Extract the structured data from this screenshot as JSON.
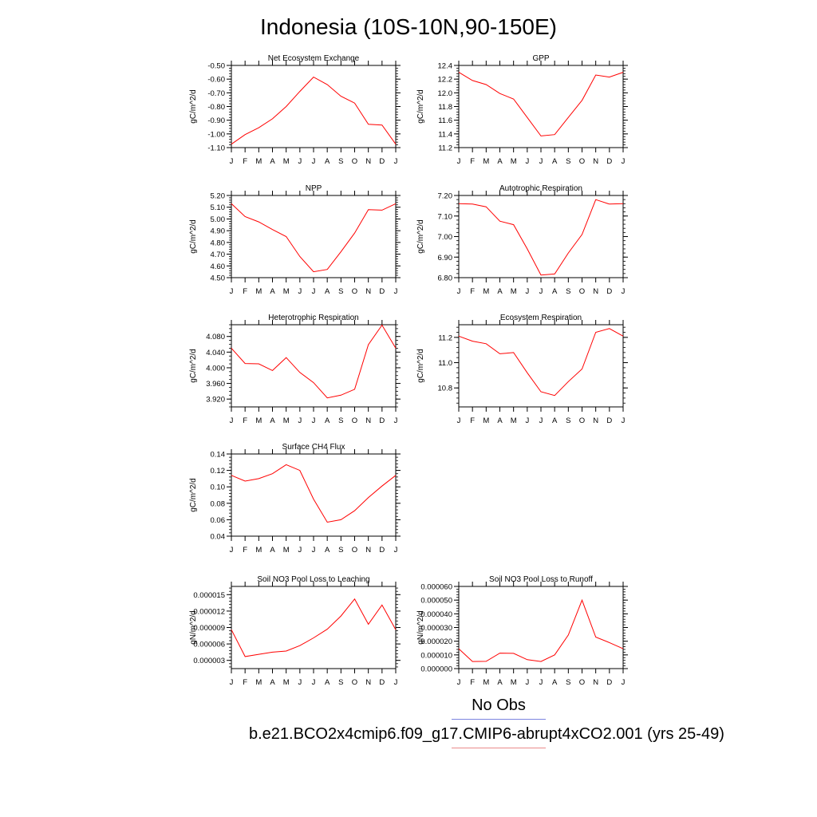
{
  "title": "Indonesia (10S-10N,90-150E)",
  "legend": {
    "obs_label": "No Obs",
    "obs_color": "#7b84e0",
    "case_label": "b.e21.BCO2x4cmip6.f09_g17.CMIP6-abrupt4xCO2.001 (yrs 25-49)",
    "case_color": "#e98a8a"
  },
  "line_color": "#ff0000",
  "chart_data": [
    {
      "type": "line",
      "title": "Net Ecosystem Exchange",
      "ylabel": "gC/m^2/d",
      "categories": [
        "J",
        "F",
        "M",
        "A",
        "M",
        "J",
        "J",
        "A",
        "S",
        "O",
        "N",
        "D",
        "J"
      ],
      "ylim": [
        -1.1,
        -0.5
      ],
      "yticks": [
        "-1.10",
        "-1.00",
        "-0.90",
        "-0.80",
        "-0.70",
        "-0.60",
        "-0.50"
      ],
      "yticks_values": [
        -1.1,
        -1.0,
        -0.9,
        -0.8,
        -0.7,
        -0.6,
        -0.5
      ],
      "minor_step": 0.02,
      "grid": false,
      "series": [
        {
          "values": [
            -1.075,
            -1.005,
            -0.955,
            -0.89,
            -0.8,
            -0.69,
            -0.585,
            -0.64,
            -0.725,
            -0.775,
            -0.93,
            -0.935,
            -1.075
          ]
        }
      ]
    },
    {
      "type": "line",
      "title": "GPP",
      "ylabel": "gC/m^2/d",
      "categories": [
        "J",
        "F",
        "M",
        "A",
        "M",
        "J",
        "J",
        "A",
        "S",
        "O",
        "N",
        "D",
        "J"
      ],
      "ylim": [
        11.2,
        12.4
      ],
      "yticks": [
        "11.2",
        "11.4",
        "11.6",
        "11.8",
        "12.0",
        "12.2",
        "12.4"
      ],
      "yticks_values": [
        11.2,
        11.4,
        11.6,
        11.8,
        12.0,
        12.2,
        12.4
      ],
      "minor_step": 0.04,
      "grid": false,
      "series": [
        {
          "values": [
            12.3,
            12.18,
            12.12,
            11.99,
            11.91,
            11.64,
            11.37,
            11.39,
            11.64,
            11.89,
            12.26,
            12.23,
            12.3
          ]
        }
      ]
    },
    {
      "type": "line",
      "title": "NPP",
      "ylabel": "gC/m^2/d",
      "categories": [
        "J",
        "F",
        "M",
        "A",
        "M",
        "J",
        "J",
        "A",
        "S",
        "O",
        "N",
        "D",
        "J"
      ],
      "ylim": [
        4.5,
        5.2
      ],
      "yticks": [
        "4.50",
        "4.60",
        "4.70",
        "4.80",
        "4.90",
        "5.00",
        "5.10",
        "5.20"
      ],
      "yticks_values": [
        4.5,
        4.6,
        4.7,
        4.8,
        4.9,
        5.0,
        5.1,
        5.2
      ],
      "minor_step": 0.02,
      "grid": false,
      "series": [
        {
          "values": [
            5.13,
            5.02,
            4.975,
            4.91,
            4.85,
            4.68,
            4.55,
            4.57,
            4.72,
            4.88,
            5.08,
            5.075,
            5.13
          ]
        }
      ]
    },
    {
      "type": "line",
      "title": "Autotrophic Respiration",
      "ylabel": "gC/m^2/d",
      "categories": [
        "J",
        "F",
        "M",
        "A",
        "M",
        "J",
        "J",
        "A",
        "S",
        "O",
        "N",
        "D",
        "J"
      ],
      "ylim": [
        6.8,
        7.2
      ],
      "yticks": [
        "6.80",
        "6.90",
        "7.00",
        "7.10",
        "7.20"
      ],
      "yticks_values": [
        6.8,
        6.9,
        7.0,
        7.1,
        7.2
      ],
      "minor_step": 0.02,
      "grid": false,
      "series": [
        {
          "values": [
            7.16,
            7.158,
            7.145,
            7.075,
            7.058,
            6.94,
            6.813,
            6.818,
            6.92,
            7.01,
            7.18,
            7.158,
            7.16
          ]
        }
      ]
    },
    {
      "type": "line",
      "title": "Heterotrophic Respiration",
      "ylabel": "gC/m^2/d",
      "categories": [
        "J",
        "F",
        "M",
        "A",
        "M",
        "J",
        "J",
        "A",
        "S",
        "O",
        "N",
        "D",
        "J"
      ],
      "ylim": [
        3.9,
        4.11
      ],
      "yticks": [
        "3.920",
        "3.960",
        "4.000",
        "4.040",
        "4.080"
      ],
      "yticks_values": [
        3.92,
        3.96,
        4.0,
        4.04,
        4.08
      ],
      "minor_step": 0.01,
      "grid": false,
      "series": [
        {
          "values": [
            4.05,
            4.011,
            4.01,
            3.993,
            4.026,
            3.988,
            3.962,
            3.923,
            3.93,
            3.945,
            4.059,
            4.109,
            4.05
          ]
        }
      ]
    },
    {
      "type": "line",
      "title": "Ecosystem Respiration",
      "ylabel": "gC/m^2/d",
      "categories": [
        "J",
        "F",
        "M",
        "A",
        "M",
        "J",
        "J",
        "A",
        "S",
        "O",
        "N",
        "D",
        "J"
      ],
      "ylim": [
        10.65,
        11.3
      ],
      "yticks": [
        "10.8",
        "11.0",
        "11.2"
      ],
      "yticks_values": [
        10.8,
        11.0,
        11.2
      ],
      "minor_step": 0.04,
      "grid": false,
      "series": [
        {
          "values": [
            11.21,
            11.17,
            11.15,
            11.07,
            11.08,
            10.92,
            10.77,
            10.74,
            10.85,
            10.95,
            11.24,
            11.27,
            11.21
          ]
        }
      ]
    },
    {
      "type": "line",
      "title": "Surface CH4 Flux",
      "ylabel": "gC/m^2/d",
      "categories": [
        "J",
        "F",
        "M",
        "A",
        "M",
        "J",
        "J",
        "A",
        "S",
        "O",
        "N",
        "D",
        "J"
      ],
      "ylim": [
        0.04,
        0.14
      ],
      "yticks": [
        "0.04",
        "0.06",
        "0.08",
        "0.10",
        "0.12",
        "0.14"
      ],
      "yticks_values": [
        0.04,
        0.06,
        0.08,
        0.1,
        0.12,
        0.14
      ],
      "minor_step": 0.004,
      "grid": false,
      "series": [
        {
          "values": [
            0.114,
            0.107,
            0.11,
            0.116,
            0.127,
            0.12,
            0.085,
            0.057,
            0.06,
            0.071,
            0.087,
            0.101,
            0.114
          ]
        }
      ]
    },
    {
      "type": "line",
      "title": "Soil NO3 Pool Loss to Leaching",
      "ylabel": "gN/m^2/d",
      "categories": [
        "J",
        "F",
        "M",
        "A",
        "M",
        "J",
        "J",
        "A",
        "S",
        "O",
        "N",
        "D",
        "J"
      ],
      "ylim": [
        1.5e-06,
        1.65e-05
      ],
      "yticks": [
        "0.000003",
        "0.000006",
        "0.000009",
        "0.000012",
        "0.000015"
      ],
      "yticks_values": [
        3e-06,
        6e-06,
        9e-06,
        1.2e-05,
        1.5e-05
      ],
      "minor_step": 6e-07,
      "grid": false,
      "series": [
        {
          "values": [
            8.6e-06,
            3.7e-06,
            4.1e-06,
            4.5e-06,
            4.7e-06,
            5.7e-06,
            7.1e-06,
            8.7e-06,
            1.11e-05,
            1.42e-05,
            9.6e-06,
            1.31e-05,
            8.6e-06
          ]
        }
      ]
    },
    {
      "type": "line",
      "title": "Soil NO3 Pool Loss to Runoff",
      "ylabel": "gN/m^2/d",
      "categories": [
        "J",
        "F",
        "M",
        "A",
        "M",
        "J",
        "J",
        "A",
        "S",
        "O",
        "N",
        "D",
        "J"
      ],
      "ylim": [
        0.0,
        6e-05
      ],
      "yticks": [
        "0.000000",
        "0.000010",
        "0.000020",
        "0.000030",
        "0.000040",
        "0.000050",
        "0.000060"
      ],
      "yticks_values": [
        0.0,
        1e-05,
        2e-05,
        3e-05,
        4e-05,
        5e-05,
        6e-05
      ],
      "minor_step": 2e-06,
      "grid": false,
      "series": [
        {
          "values": [
            1.45e-05,
            5.2e-06,
            5.3e-06,
            1.13e-05,
            1.11e-05,
            6.5e-06,
            5.2e-06,
            1e-05,
            2.45e-05,
            5e-05,
            2.3e-05,
            1.9e-05,
            1.45e-05
          ]
        }
      ]
    }
  ]
}
